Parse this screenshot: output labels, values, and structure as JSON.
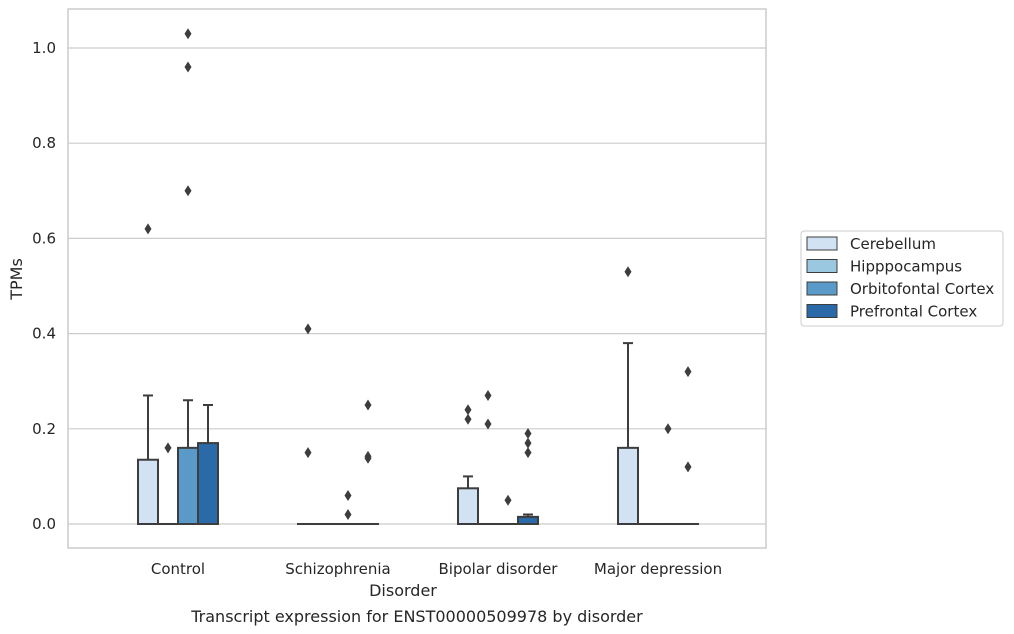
{
  "caption": "Transcript expression for ENST00000509978 by disorder",
  "chart_data": {
    "type": "box",
    "xlabel": "Disorder",
    "ylabel": "TPMs",
    "ylim": [
      -0.05,
      1.08
    ],
    "yticks": [
      "0.0",
      "0.2",
      "0.4",
      "0.6",
      "0.8",
      "1.0"
    ],
    "grid": "horizontal",
    "legend_position": "right",
    "categories": [
      "Control",
      "Schizophrenia",
      "Bipolar disorder",
      "Major depression"
    ],
    "series": [
      {
        "name": "Cerebellum",
        "color": "#d1e2f2",
        "boxes": [
          {
            "q1": 0,
            "median": 0,
            "q3": 0.135,
            "whisker_low": 0,
            "whisker_high": 0.27,
            "outliers": [
              0.62
            ]
          },
          {
            "q1": 0,
            "median": 0,
            "q3": 0,
            "whisker_low": 0,
            "whisker_high": 0,
            "outliers": [
              0.41,
              0.15
            ]
          },
          {
            "q1": 0,
            "median": 0,
            "q3": 0.075,
            "whisker_low": 0,
            "whisker_high": 0.1,
            "outliers": [
              0.24,
              0.22
            ]
          },
          {
            "q1": 0,
            "median": 0,
            "q3": 0.16,
            "whisker_low": 0,
            "whisker_high": 0.38,
            "outliers": [
              0.53
            ]
          }
        ]
      },
      {
        "name": "Hipppocampus",
        "color": "#9ac8e0",
        "boxes": [
          {
            "q1": 0,
            "median": 0,
            "q3": 0,
            "whisker_low": 0,
            "whisker_high": 0,
            "outliers": [
              0.16
            ]
          },
          {
            "q1": 0,
            "median": 0,
            "q3": 0,
            "whisker_low": 0,
            "whisker_high": 0,
            "outliers": []
          },
          {
            "q1": 0,
            "median": 0,
            "q3": 0,
            "whisker_low": 0,
            "whisker_high": 0,
            "outliers": [
              0.27,
              0.21
            ]
          },
          {
            "q1": 0,
            "median": 0,
            "q3": 0,
            "whisker_low": 0,
            "whisker_high": 0,
            "outliers": []
          }
        ]
      },
      {
        "name": "Orbitofontal Cortex",
        "color": "#5a9ac8",
        "boxes": [
          {
            "q1": 0,
            "median": 0,
            "q3": 0.16,
            "whisker_low": 0,
            "whisker_high": 0.26,
            "outliers": [
              1.03,
              0.96,
              0.7
            ]
          },
          {
            "q1": 0,
            "median": 0,
            "q3": 0,
            "whisker_low": 0,
            "whisker_high": 0,
            "outliers": [
              0.06,
              0.02
            ]
          },
          {
            "q1": 0,
            "median": 0,
            "q3": 0,
            "whisker_low": 0,
            "whisker_high": 0,
            "outliers": [
              0.05
            ]
          },
          {
            "q1": 0,
            "median": 0,
            "q3": 0,
            "whisker_low": 0,
            "whisker_high": 0,
            "outliers": [
              0.2
            ]
          }
        ]
      },
      {
        "name": "Prefrontal Cortex",
        "color": "#2b6aa8",
        "boxes": [
          {
            "q1": 0,
            "median": 0,
            "q3": 0.17,
            "whisker_low": 0,
            "whisker_high": 0.25,
            "outliers": []
          },
          {
            "q1": 0,
            "median": 0,
            "q3": 0,
            "whisker_low": 0,
            "whisker_high": 0,
            "outliers": [
              0.25,
              0.142,
              0.138
            ]
          },
          {
            "q1": 0,
            "median": 0,
            "q3": 0.015,
            "whisker_low": 0,
            "whisker_high": 0.02,
            "outliers": [
              0.19,
              0.17,
              0.15
            ]
          },
          {
            "q1": 0,
            "median": 0,
            "q3": 0,
            "whisker_low": 0,
            "whisker_high": 0,
            "outliers": [
              0.32,
              0.12
            ]
          }
        ]
      }
    ]
  }
}
